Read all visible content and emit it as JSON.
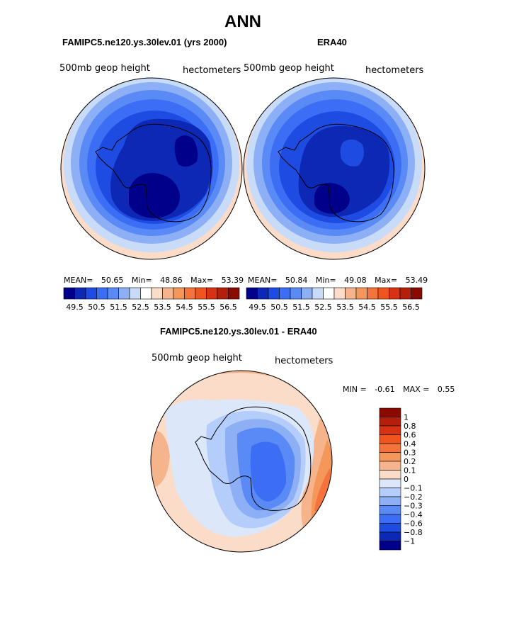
{
  "figure": {
    "title": "ANN"
  },
  "panels": [
    {
      "id": "model",
      "title": "FAMIPC5.ne120.ys.30lev.01 (yrs 2000)",
      "left_label": "500mb geop height",
      "right_label": "hectometers",
      "stats": {
        "mean_label": "MEAN=",
        "mean": "50.65",
        "min_label": "Min=",
        "min": "48.86",
        "max_label": "Max=",
        "max": "53.39"
      }
    },
    {
      "id": "obs",
      "title": "ERA40",
      "left_label": "500mb geop height",
      "right_label": "hectometers",
      "stats": {
        "mean_label": "MEAN=",
        "mean": "50.84",
        "min_label": "Min=",
        "min": "49.08",
        "max_label": "Max=",
        "max": "53.49"
      }
    },
    {
      "id": "diff",
      "title": "FAMIPC5.ne120.ys.30lev.01 - ERA40",
      "left_label": "500mb geop height",
      "right_label": "hectometers",
      "stats_text": {
        "min_label": "MIN =",
        "min": "-0.61",
        "max_label": "MAX =",
        "max": "0.55"
      }
    }
  ],
  "colorbar_h": {
    "labels": [
      "49.5",
      "50.5",
      "51.5",
      "52.5",
      "53.5",
      "54.5",
      "55.5",
      "56.5"
    ],
    "colors": [
      "#00008b",
      "#0c28b4",
      "#1e4be1",
      "#3c6ef5",
      "#5a8af5",
      "#8caff5",
      "#c8dcfa",
      "#ffffff",
      "#fadcc8",
      "#f5b48c",
      "#f5965a",
      "#f5733c",
      "#f0551e",
      "#d73214",
      "#b41e0a",
      "#8b0a00"
    ]
  },
  "colorbar_v": {
    "labels": [
      "1",
      "0.8",
      "0.6",
      "0.4",
      "0.3",
      "0.2",
      "0.1",
      "0",
      "−0.1",
      "−0.2",
      "−0.3",
      "−0.4",
      "−0.6",
      "−0.8",
      "−1"
    ],
    "colors": [
      "#8b0a00",
      "#b41e0a",
      "#d73214",
      "#f0551e",
      "#f5733c",
      "#f5965a",
      "#f5b48c",
      "#fadcc8",
      "#dce8fa",
      "#b4cdfa",
      "#8caff5",
      "#5a8af5",
      "#3c6ef5",
      "#1e4be1",
      "#0c28b4",
      "#00008b"
    ]
  },
  "map_colors": {
    "c1": "#fadcc8",
    "c2": "#c8dcfa",
    "c3": "#8caff5",
    "c4": "#5a8af5",
    "c5": "#3c6ef5",
    "c6": "#1e4be1",
    "c7": "#0c28b4",
    "c8": "#00008b",
    "d_pos1": "#fadcc8",
    "d_pos2": "#f5b48c",
    "d_pos3": "#f5965a",
    "d_pos4": "#f5733c",
    "d_neg1": "#dce8fa",
    "d_neg2": "#b4cdfa",
    "d_neg3": "#8caff5",
    "d_neg4": "#5a8af5",
    "d_neg5": "#3c6ef5"
  }
}
